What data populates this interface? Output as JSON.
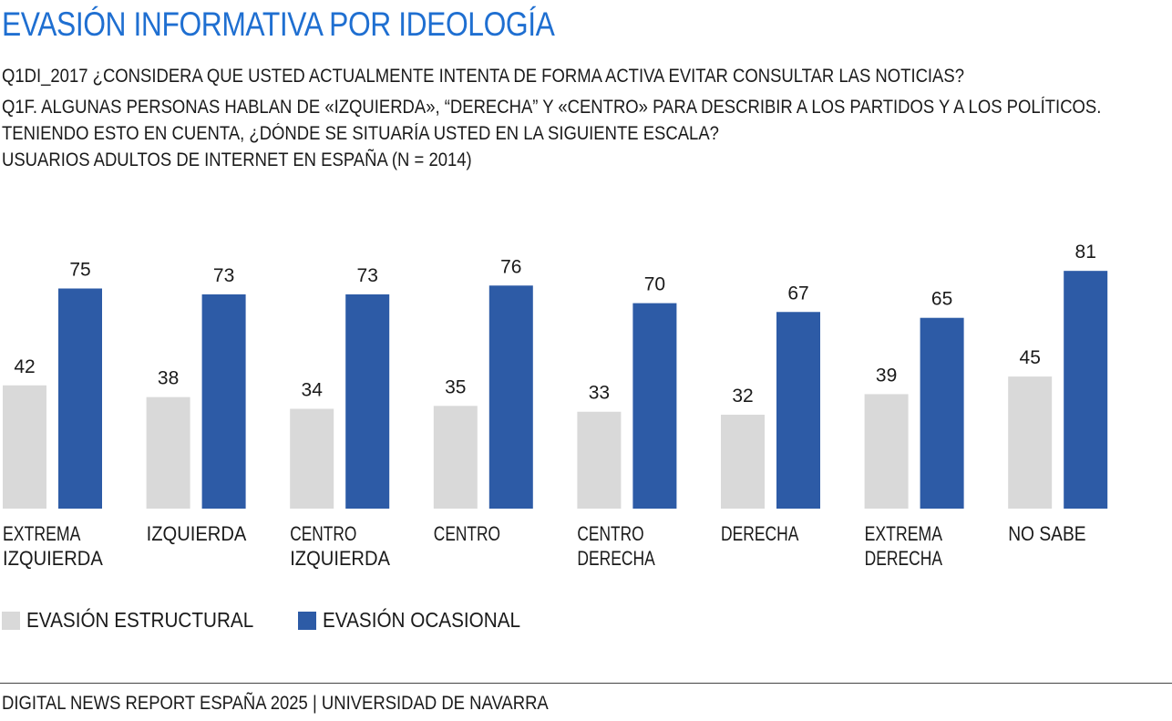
{
  "title": "EVASIÓN INFORMATIVA POR IDEOLOGÍA",
  "subtitle_lines": [
    "Q1DI_2017 ¿CONSIDERA QUE USTED ACTUALMENTE INTENTA DE FORMA ACTIVA EVITAR CONSULTAR LAS NOTICIAS?",
    "Q1F. ALGUNAS PERSONAS HABLAN DE «IZQUIERDA», “DERECHA” Y «CENTRO» PARA DESCRIBIR A LOS PARTIDOS Y A LOS POLÍTICOS.",
    "TENIENDO ESTO EN CUENTA, ¿DÓNDE SE SITUARÍA USTED EN LA SIGUIENTE ESCALA?",
    "USUARIOS ADULTOS DE INTERNET EN ESPAÑA (N = 2014)"
  ],
  "source": "DIGITAL NEWS REPORT ESPAÑA 2025 | UNIVERSIDAD DE NAVARRA",
  "colors": {
    "title": "#1f6fd1",
    "structural": "#d9d9d9",
    "occasional": "#2d5ba6"
  },
  "chart_data": {
    "type": "bar",
    "categories": [
      [
        "EXTREMA",
        "IZQUIERDA"
      ],
      [
        "IZQUIERDA"
      ],
      [
        "CENTRO",
        "IZQUIERDA"
      ],
      [
        "CENTRO"
      ],
      [
        "CENTRO",
        "DERECHA"
      ],
      [
        "DERECHA"
      ],
      [
        "EXTREMA",
        "DERECHA"
      ],
      [
        "NO SABE"
      ]
    ],
    "series": [
      {
        "name": "EVASIÓN ESTRUCTURAL",
        "color": "#d9d9d9",
        "values": [
          42,
          38,
          34,
          35,
          33,
          32,
          39,
          45
        ]
      },
      {
        "name": "EVASIÓN OCASIONAL",
        "color": "#2d5ba6",
        "values": [
          75,
          73,
          73,
          76,
          70,
          67,
          65,
          81
        ]
      }
    ],
    "ylim": [
      0,
      100
    ],
    "grid": false,
    "legend_position": "bottom-left"
  }
}
